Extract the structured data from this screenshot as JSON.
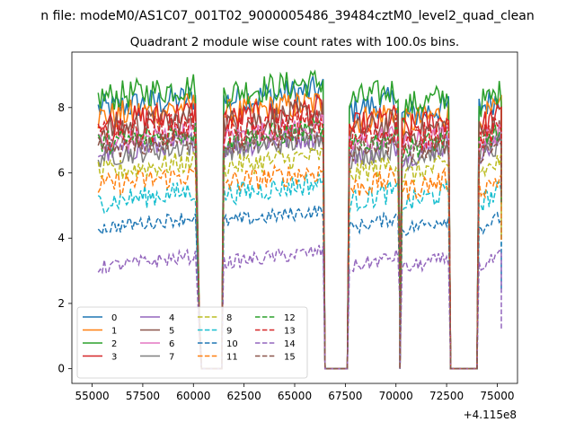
{
  "figure": {
    "suptitle": "n file: modeM0/AS1C07_001T02_9000005486_39484cztM0_level2_quad_clean"
  },
  "chart_data": {
    "type": "line",
    "title": "Quadrant 2 module wise count rates with 100.0s bins.",
    "xlabel": "",
    "ylabel": "",
    "x_offset_label": "+4.115e8",
    "xlim": [
      54000,
      76000
    ],
    "ylim": [
      -0.45,
      9.7
    ],
    "x_ticks": [
      55000,
      57500,
      60000,
      62500,
      65000,
      67500,
      70000,
      72500,
      75000
    ],
    "x_tick_labels": [
      "55000",
      "57500",
      "60000",
      "62500",
      "65000",
      "67500",
      "70000",
      "72500",
      "75000"
    ],
    "y_ticks": [
      0,
      2,
      4,
      6,
      8
    ],
    "y_tick_labels": [
      "0",
      "2",
      "4",
      "6",
      "8"
    ],
    "grid": false,
    "legend_placement": "lower left",
    "legend_columns": 4,
    "segments": [
      [
        55300,
        60100
      ],
      [
        61500,
        66400
      ],
      [
        67700,
        70100
      ],
      [
        70300,
        72600
      ],
      [
        74100,
        75200
      ]
    ],
    "gaps_at_zero": [
      [
        60400,
        61400
      ],
      [
        66700,
        67600
      ],
      [
        72700,
        74000
      ]
    ],
    "series": [
      {
        "name": "0",
        "color": "#1f77b4",
        "dash": "solid",
        "levels": [
          7.95,
          8.2,
          7.9,
          7.7,
          8.0
        ]
      },
      {
        "name": "1",
        "color": "#ff7f0e",
        "dash": "solid",
        "levels": [
          7.7,
          7.8,
          7.55,
          7.5,
          7.6
        ]
      },
      {
        "name": "2",
        "color": "#2ca02c",
        "dash": "solid",
        "levels": [
          8.3,
          8.45,
          8.2,
          8.0,
          8.1
        ]
      },
      {
        "name": "3",
        "color": "#d62728",
        "dash": "solid",
        "levels": [
          7.5,
          7.6,
          7.35,
          7.3,
          7.4
        ]
      },
      {
        "name": "4",
        "color": "#9467bd",
        "dash": "solid",
        "levels": [
          6.6,
          6.8,
          6.5,
          6.5,
          6.6
        ]
      },
      {
        "name": "5",
        "color": "#8c564b",
        "dash": "solid",
        "levels": [
          7.3,
          7.5,
          7.2,
          7.1,
          7.2
        ]
      },
      {
        "name": "6",
        "color": "#e377c2",
        "dash": "solid",
        "levels": [
          6.9,
          7.1,
          6.85,
          6.8,
          6.9
        ]
      },
      {
        "name": "7",
        "color": "#7f7f7f",
        "dash": "solid",
        "levels": [
          6.5,
          6.7,
          6.45,
          6.4,
          6.5
        ]
      },
      {
        "name": "8",
        "color": "#bcbd22",
        "dash": "dashed",
        "levels": [
          6.0,
          6.2,
          5.95,
          5.9,
          6.0
        ]
      },
      {
        "name": "9",
        "color": "#17becf",
        "dash": "dashed",
        "levels": [
          5.1,
          5.35,
          5.1,
          5.05,
          5.1
        ]
      },
      {
        "name": "10",
        "color": "#1f77b4",
        "dash": "dashed",
        "levels": [
          4.3,
          4.5,
          4.3,
          4.25,
          4.3
        ]
      },
      {
        "name": "11",
        "color": "#ff7f0e",
        "dash": "dashed",
        "levels": [
          5.6,
          5.7,
          5.5,
          5.45,
          5.5
        ]
      },
      {
        "name": "12",
        "color": "#2ca02c",
        "dash": "dashed",
        "levels": [
          6.9,
          7.0,
          6.8,
          6.7,
          6.9
        ]
      },
      {
        "name": "13",
        "color": "#d62728",
        "dash": "dashed",
        "levels": [
          7.1,
          7.2,
          7.0,
          6.95,
          7.0
        ]
      },
      {
        "name": "14",
        "color": "#9467bd",
        "dash": "dashed",
        "levels": [
          3.1,
          3.25,
          3.1,
          3.05,
          3.1
        ]
      },
      {
        "name": "15",
        "color": "#8c564b",
        "dash": "dashed",
        "levels": [
          6.7,
          6.9,
          6.6,
          6.55,
          6.6
        ]
      }
    ]
  }
}
